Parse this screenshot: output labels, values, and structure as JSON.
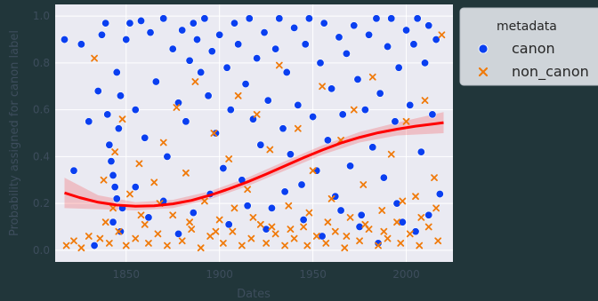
{
  "chart_data": {
    "type": "scatter",
    "title": "",
    "xlabel": "Dates",
    "ylabel": "Probability assigned for canon label",
    "xlim": [
      1812,
      2025
    ],
    "ylim": [
      -0.05,
      1.05
    ],
    "x_ticks": [
      {
        "value": 1850,
        "label": "1850"
      },
      {
        "value": 1900,
        "label": "1900"
      },
      {
        "value": 1950,
        "label": "1950"
      },
      {
        "value": 2000,
        "label": "2000"
      }
    ],
    "y_ticks": [
      {
        "value": 0.0,
        "label": "0.0"
      },
      {
        "value": 0.2,
        "label": "0.2"
      },
      {
        "value": 0.4,
        "label": "0.4"
      },
      {
        "value": 0.6,
        "label": "0.6"
      },
      {
        "value": 0.8,
        "label": "0.8"
      },
      {
        "value": 1.0,
        "label": "1.0"
      }
    ],
    "grid": true,
    "legend": {
      "title": "metadata",
      "placement": "outside-right",
      "entries": [
        {
          "label": "canon",
          "marker": "circle",
          "color": "#0a3ff0"
        },
        {
          "label": "non_canon",
          "marker": "x",
          "color": "#f07a0a"
        }
      ]
    },
    "series": [
      {
        "name": "canon",
        "marker": "circle",
        "color": "#0a3ff0",
        "points": [
          [
            1817,
            0.9
          ],
          [
            1822,
            0.34
          ],
          [
            1826,
            0.88
          ],
          [
            1830,
            0.55
          ],
          [
            1833,
            0.02
          ],
          [
            1835,
            0.68
          ],
          [
            1837,
            0.92
          ],
          [
            1839,
            0.97
          ],
          [
            1840,
            0.58
          ],
          [
            1841,
            0.45
          ],
          [
            1842,
            0.38
          ],
          [
            1843,
            0.32
          ],
          [
            1844,
            0.27
          ],
          [
            1845,
            0.22
          ],
          [
            1846,
            0.52
          ],
          [
            1845,
            0.76
          ],
          [
            1847,
            0.66
          ],
          [
            1848,
            0.18
          ],
          [
            1850,
            0.9
          ],
          [
            1852,
            0.97
          ],
          [
            1855,
            0.6
          ],
          [
            1858,
            0.98
          ],
          [
            1860,
            0.48
          ],
          [
            1863,
            0.93
          ],
          [
            1866,
            0.72
          ],
          [
            1870,
            0.99
          ],
          [
            1872,
            0.4
          ],
          [
            1875,
            0.86
          ],
          [
            1878,
            0.63
          ],
          [
            1880,
            0.94
          ],
          [
            1882,
            0.55
          ],
          [
            1884,
            0.81
          ],
          [
            1886,
            0.97
          ],
          [
            1888,
            0.9
          ],
          [
            1890,
            0.76
          ],
          [
            1892,
            0.99
          ],
          [
            1894,
            0.66
          ],
          [
            1896,
            0.85
          ],
          [
            1898,
            0.5
          ],
          [
            1900,
            0.92
          ],
          [
            1902,
            0.35
          ],
          [
            1904,
            0.78
          ],
          [
            1906,
            0.6
          ],
          [
            1908,
            0.97
          ],
          [
            1910,
            0.88
          ],
          [
            1912,
            0.3
          ],
          [
            1914,
            0.71
          ],
          [
            1916,
            0.99
          ],
          [
            1918,
            0.56
          ],
          [
            1920,
            0.82
          ],
          [
            1922,
            0.45
          ],
          [
            1924,
            0.93
          ],
          [
            1926,
            0.64
          ],
          [
            1928,
            0.18
          ],
          [
            1930,
            0.86
          ],
          [
            1932,
            0.99
          ],
          [
            1934,
            0.52
          ],
          [
            1936,
            0.76
          ],
          [
            1938,
            0.41
          ],
          [
            1940,
            0.95
          ],
          [
            1942,
            0.62
          ],
          [
            1944,
            0.28
          ],
          [
            1946,
            0.88
          ],
          [
            1948,
            0.99
          ],
          [
            1950,
            0.57
          ],
          [
            1952,
            0.34
          ],
          [
            1954,
            0.8
          ],
          [
            1956,
            0.97
          ],
          [
            1958,
            0.47
          ],
          [
            1960,
            0.69
          ],
          [
            1962,
            0.23
          ],
          [
            1964,
            0.91
          ],
          [
            1966,
            0.58
          ],
          [
            1968,
            0.84
          ],
          [
            1970,
            0.36
          ],
          [
            1972,
            0.96
          ],
          [
            1974,
            0.73
          ],
          [
            1976,
            0.15
          ],
          [
            1978,
            0.6
          ],
          [
            1980,
            0.92
          ],
          [
            1982,
            0.44
          ],
          [
            1984,
            0.99
          ],
          [
            1986,
            0.67
          ],
          [
            1988,
            0.31
          ],
          [
            1990,
            0.87
          ],
          [
            1992,
            0.99
          ],
          [
            1994,
            0.55
          ],
          [
            1996,
            0.78
          ],
          [
            1998,
            0.12
          ],
          [
            2000,
            0.94
          ],
          [
            2002,
            0.62
          ],
          [
            2004,
            0.88
          ],
          [
            2006,
            0.99
          ],
          [
            2008,
            0.42
          ],
          [
            2010,
            0.8
          ],
          [
            2012,
            0.96
          ],
          [
            2014,
            0.58
          ],
          [
            2016,
            0.9
          ],
          [
            2018,
            0.24
          ],
          [
            1843,
            0.12
          ],
          [
            1847,
            0.08
          ],
          [
            1855,
            0.27
          ],
          [
            1862,
            0.14
          ],
          [
            1870,
            0.21
          ],
          [
            1878,
            0.07
          ],
          [
            1886,
            0.16
          ],
          [
            1895,
            0.24
          ],
          [
            1905,
            0.11
          ],
          [
            1915,
            0.19
          ],
          [
            1925,
            0.09
          ],
          [
            1935,
            0.25
          ],
          [
            1945,
            0.13
          ],
          [
            1955,
            0.06
          ],
          [
            1965,
            0.17
          ],
          [
            1975,
            0.1
          ],
          [
            1985,
            0.03
          ],
          [
            1995,
            0.2
          ],
          [
            2005,
            0.08
          ],
          [
            2012,
            0.15
          ]
        ]
      },
      {
        "name": "non_canon",
        "marker": "x",
        "color": "#f07a0a",
        "points": [
          [
            1818,
            0.02
          ],
          [
            1822,
            0.04
          ],
          [
            1826,
            0.01
          ],
          [
            1830,
            0.06
          ],
          [
            1833,
            0.82
          ],
          [
            1836,
            0.05
          ],
          [
            1839,
            0.12
          ],
          [
            1841,
            0.03
          ],
          [
            1843,
            0.18
          ],
          [
            1846,
            0.08
          ],
          [
            1848,
            0.56
          ],
          [
            1850,
            0.02
          ],
          [
            1852,
            0.24
          ],
          [
            1855,
            0.05
          ],
          [
            1857,
            0.37
          ],
          [
            1860,
            0.11
          ],
          [
            1862,
            0.03
          ],
          [
            1865,
            0.29
          ],
          [
            1867,
            0.07
          ],
          [
            1870,
            0.46
          ],
          [
            1872,
            0.02
          ],
          [
            1875,
            0.15
          ],
          [
            1877,
            0.61
          ],
          [
            1880,
            0.04
          ],
          [
            1882,
            0.33
          ],
          [
            1885,
            0.09
          ],
          [
            1887,
            0.72
          ],
          [
            1890,
            0.01
          ],
          [
            1892,
            0.21
          ],
          [
            1895,
            0.06
          ],
          [
            1897,
            0.5
          ],
          [
            1900,
            0.13
          ],
          [
            1902,
            0.03
          ],
          [
            1905,
            0.39
          ],
          [
            1907,
            0.08
          ],
          [
            1910,
            0.66
          ],
          [
            1912,
            0.02
          ],
          [
            1915,
            0.26
          ],
          [
            1917,
            0.05
          ],
          [
            1920,
            0.58
          ],
          [
            1922,
            0.11
          ],
          [
            1925,
            0.03
          ],
          [
            1927,
            0.43
          ],
          [
            1930,
            0.07
          ],
          [
            1932,
            0.79
          ],
          [
            1935,
            0.02
          ],
          [
            1937,
            0.19
          ],
          [
            1940,
            0.05
          ],
          [
            1942,
            0.52
          ],
          [
            1945,
            0.1
          ],
          [
            1947,
            0.02
          ],
          [
            1950,
            0.34
          ],
          [
            1952,
            0.06
          ],
          [
            1955,
            0.7
          ],
          [
            1957,
            0.03
          ],
          [
            1960,
            0.22
          ],
          [
            1962,
            0.08
          ],
          [
            1965,
            0.47
          ],
          [
            1967,
            0.01
          ],
          [
            1970,
            0.14
          ],
          [
            1972,
            0.6
          ],
          [
            1975,
            0.04
          ],
          [
            1977,
            0.28
          ],
          [
            1980,
            0.09
          ],
          [
            1982,
            0.74
          ],
          [
            1985,
            0.02
          ],
          [
            1987,
            0.17
          ],
          [
            1990,
            0.05
          ],
          [
            1992,
            0.41
          ],
          [
            1995,
            0.12
          ],
          [
            1997,
            0.03
          ],
          [
            2000,
            0.55
          ],
          [
            2002,
            0.07
          ],
          [
            2005,
            0.23
          ],
          [
            2007,
            0.02
          ],
          [
            2010,
            0.64
          ],
          [
            2012,
            0.1
          ],
          [
            2015,
            0.31
          ],
          [
            2017,
            0.04
          ],
          [
            2019,
            0.92
          ],
          [
            1838,
            0.3
          ],
          [
            1844,
            0.42
          ],
          [
            1858,
            0.15
          ],
          [
            1868,
            0.2
          ],
          [
            1884,
            0.12
          ],
          [
            1898,
            0.08
          ],
          [
            1908,
            0.18
          ],
          [
            1918,
            0.14
          ],
          [
            1928,
            0.1
          ],
          [
            1938,
            0.09
          ],
          [
            1948,
            0.16
          ],
          [
            1958,
            0.12
          ],
          [
            1968,
            0.06
          ],
          [
            1978,
            0.11
          ],
          [
            1988,
            0.08
          ],
          [
            1998,
            0.21
          ],
          [
            2008,
            0.14
          ],
          [
            2016,
            0.18
          ]
        ]
      },
      {
        "name": "",
        "type": "line",
        "color": "#ff0000",
        "points": [
          [
            1817,
            0.245
          ],
          [
            1825,
            0.225
          ],
          [
            1835,
            0.205
          ],
          [
            1845,
            0.193
          ],
          [
            1855,
            0.188
          ],
          [
            1865,
            0.19
          ],
          [
            1875,
            0.198
          ],
          [
            1885,
            0.213
          ],
          [
            1895,
            0.235
          ],
          [
            1905,
            0.262
          ],
          [
            1915,
            0.292
          ],
          [
            1925,
            0.325
          ],
          [
            1935,
            0.36
          ],
          [
            1945,
            0.395
          ],
          [
            1955,
            0.428
          ],
          [
            1965,
            0.458
          ],
          [
            1975,
            0.482
          ],
          [
            1985,
            0.502
          ],
          [
            1995,
            0.517
          ],
          [
            2005,
            0.53
          ],
          [
            2015,
            0.54
          ],
          [
            2020,
            0.545
          ]
        ],
        "band": [
          [
            1817,
            0.18,
            0.31
          ],
          [
            1835,
            0.175,
            0.235
          ],
          [
            1855,
            0.17,
            0.205
          ],
          [
            1875,
            0.18,
            0.215
          ],
          [
            1895,
            0.218,
            0.252
          ],
          [
            1915,
            0.274,
            0.31
          ],
          [
            1935,
            0.34,
            0.38
          ],
          [
            1955,
            0.408,
            0.448
          ],
          [
            1975,
            0.46,
            0.505
          ],
          [
            1995,
            0.49,
            0.545
          ],
          [
            2020,
            0.5,
            0.59
          ]
        ]
      }
    ]
  }
}
